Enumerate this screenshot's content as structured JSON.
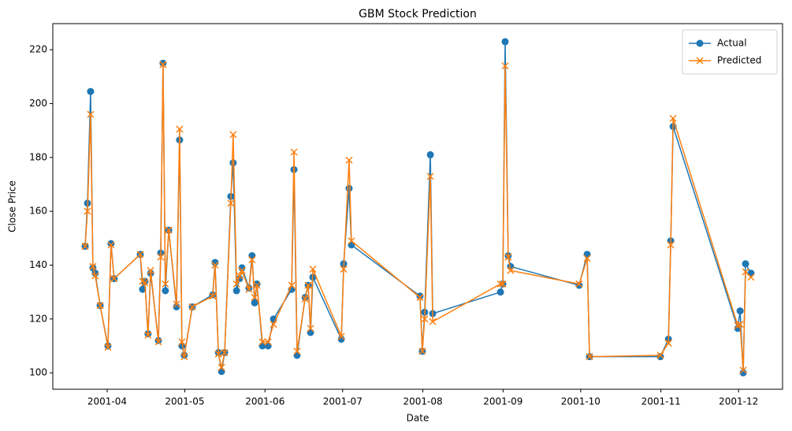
{
  "chart_data": {
    "type": "line",
    "title": "GBM Stock Prediction",
    "x_label": "Date",
    "y_label": "Close Price",
    "x": [
      82.5,
      83.4,
      84.6,
      85.5,
      86.4,
      88.3,
      91.3,
      92.5,
      93.7,
      103.8,
      104.7,
      105.6,
      106.8,
      107.8,
      110.8,
      111.7,
      112.6,
      113.5,
      114.8,
      117.8,
      119,
      119.9,
      120.8,
      123.9,
      131.8,
      132.7,
      134,
      135.2,
      136.4,
      138.8,
      139.7,
      141,
      142.2,
      143.1,
      145.8,
      147,
      148,
      148.9,
      151,
      153.2,
      155.3,
      162.3,
      163.2,
      164.4,
      167.5,
      168.7,
      169.6,
      170.5,
      181.5,
      182.4,
      184.5,
      185.4,
      211.9,
      212.8,
      213.7,
      215.9,
      216.8,
      243,
      243.9,
      244.8,
      246,
      246.9,
      273.4,
      276.5,
      277.4,
      304.8,
      307.9,
      308.8,
      309.7,
      334.7,
      335.6,
      336.8,
      337.7,
      339.8
    ],
    "series": [
      {
        "name": "Actual",
        "color": "#1f77b4",
        "marker": "circle",
        "values": [
          147,
          163,
          204.5,
          139,
          137,
          125,
          110,
          148,
          135,
          144,
          131,
          134,
          114.5,
          137,
          112,
          144.5,
          215,
          130.5,
          153,
          124.5,
          186.5,
          110,
          106.5,
          124.5,
          129,
          141,
          107.5,
          100.5,
          107.5,
          165.5,
          178,
          130.5,
          135,
          139,
          131.5,
          143.5,
          126,
          133,
          110,
          110,
          120,
          131,
          175.5,
          106.5,
          128,
          132.5,
          115,
          135.5,
          112.5,
          140.5,
          168.5,
          147.5,
          128.5,
          108,
          122.5,
          181,
          122,
          130,
          133,
          223,
          143.5,
          139.5,
          132.5,
          144,
          106,
          106,
          112.5,
          149,
          191.5,
          116.5,
          123,
          100,
          140.5,
          137
        ]
      },
      {
        "name": "Predicted",
        "color": "#ff7f0e",
        "marker": "x",
        "values": [
          147,
          160,
          196,
          139.5,
          136,
          125,
          109.5,
          147.5,
          135,
          144,
          134,
          133.5,
          114,
          138,
          111.5,
          143,
          214.5,
          133,
          153,
          125.5,
          190.5,
          111.5,
          106,
          124.5,
          128.5,
          140,
          107,
          102,
          107.5,
          163,
          188.5,
          133,
          136,
          138,
          131,
          142,
          128,
          132.5,
          111.5,
          111.5,
          118,
          132.5,
          182,
          108,
          127.5,
          132.5,
          116.5,
          138.5,
          113.5,
          138.5,
          179,
          149,
          128,
          108,
          120,
          173,
          119,
          133,
          133,
          214,
          143,
          138,
          133,
          142.5,
          106,
          106.5,
          111,
          147.5,
          194.5,
          117.5,
          118,
          101,
          137.5,
          135.5
        ]
      }
    ],
    "xlim": [
      70,
      352
    ],
    "xticks": [
      {
        "value": 91,
        "label": "2001-04"
      },
      {
        "value": 121,
        "label": "2001-05"
      },
      {
        "value": 152,
        "label": "2001-06"
      },
      {
        "value": 182,
        "label": "2001-07"
      },
      {
        "value": 213,
        "label": "2001-08"
      },
      {
        "value": 244,
        "label": "2001-09"
      },
      {
        "value": 274,
        "label": "2001-10"
      },
      {
        "value": 305,
        "label": "2001-11"
      },
      {
        "value": 335,
        "label": "2001-12"
      }
    ],
    "ylim": [
      93.9,
      229.7
    ],
    "yticks": [
      100,
      120,
      140,
      160,
      180,
      200,
      220
    ],
    "grid": false,
    "legend": "upper right"
  }
}
